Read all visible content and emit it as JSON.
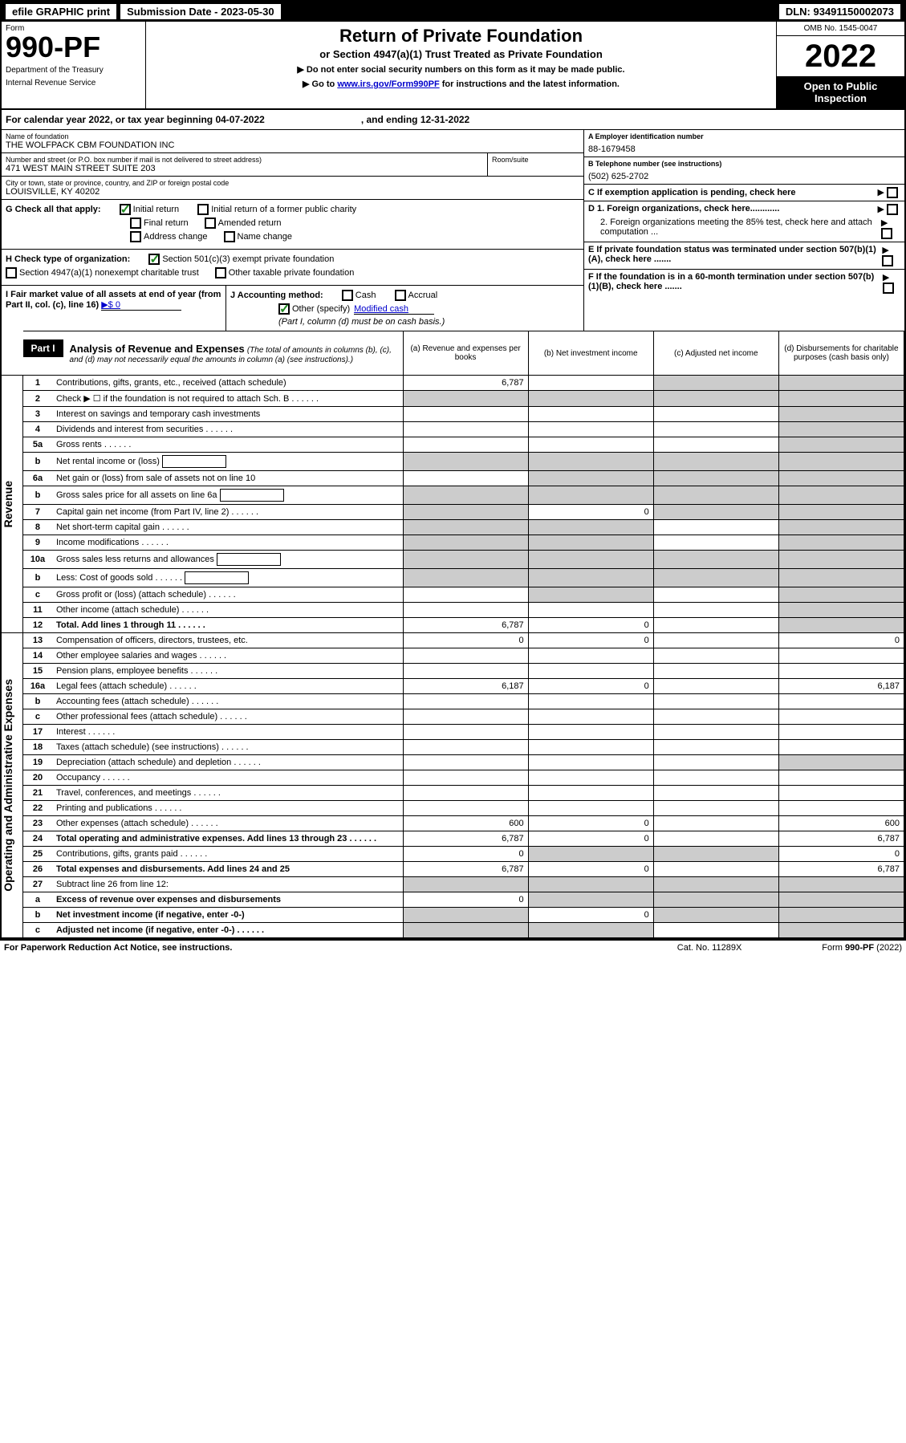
{
  "top_bar": {
    "efile": "efile GRAPHIC print",
    "submission_label": "Submission Date - 2023-05-30",
    "dln": "DLN: 93491150002073"
  },
  "header": {
    "form_label": "Form",
    "form_number": "990-PF",
    "dept1": "Department of the Treasury",
    "dept2": "Internal Revenue Service",
    "title": "Return of Private Foundation",
    "subtitle": "or Section 4947(a)(1) Trust Treated as Private Foundation",
    "instr1": "▶ Do not enter social security numbers on this form as it may be made public.",
    "instr2_pre": "▶ Go to ",
    "instr2_link": "www.irs.gov/Form990PF",
    "instr2_post": " for instructions and the latest information.",
    "omb": "OMB No. 1545-0047",
    "year": "2022",
    "open_public": "Open to Public Inspection"
  },
  "calendar": {
    "text1": "For calendar year 2022, or tax year beginning 04-07-2022",
    "text2": ", and ending 12-31-2022"
  },
  "foundation": {
    "name_label": "Name of foundation",
    "name": "THE WOLFPACK CBM FOUNDATION INC",
    "address_label": "Number and street (or P.O. box number if mail is not delivered to street address)",
    "address": "471 WEST MAIN STREET SUITE 203",
    "room_label": "Room/suite",
    "city_label": "City or town, state or province, country, and ZIP or foreign postal code",
    "city": "LOUISVILLE, KY  40202",
    "ein_label": "A Employer identification number",
    "ein": "88-1679458",
    "phone_label": "B Telephone number (see instructions)",
    "phone": "(502) 625-2702",
    "c_label": "C If exemption application is pending, check here",
    "d1_label": "D 1. Foreign organizations, check here............",
    "d2_label": "2. Foreign organizations meeting the 85% test, check here and attach computation ...",
    "e_label": "E If private foundation status was terminated under section 507(b)(1)(A), check here .......",
    "f_label": "F If the foundation is in a 60-month termination under section 507(b)(1)(B), check here ......."
  },
  "section_g": {
    "label": "G Check all that apply:",
    "initial": "Initial return",
    "initial_former": "Initial return of a former public charity",
    "final": "Final return",
    "amended": "Amended return",
    "address_change": "Address change",
    "name_change": "Name change"
  },
  "section_h": {
    "label": "H Check type of organization:",
    "opt1": "Section 501(c)(3) exempt private foundation",
    "opt2": "Section 4947(a)(1) nonexempt charitable trust",
    "opt3": "Other taxable private foundation"
  },
  "section_i": {
    "label": "I Fair market value of all assets at end of year (from Part II, col. (c), line 16)",
    "value": "▶$  0"
  },
  "section_j": {
    "label": "J Accounting method:",
    "cash": "Cash",
    "accrual": "Accrual",
    "other_pre": "Other (specify)",
    "other_val": "Modified cash",
    "note": "(Part I, column (d) must be on cash basis.)"
  },
  "part1": {
    "label": "Part I",
    "title": "Analysis of Revenue and Expenses",
    "note": "(The total of amounts in columns (b), (c), and (d) may not necessarily equal the amounts in column (a) (see instructions).)",
    "col_a": "(a)  Revenue and expenses per books",
    "col_b": "(b)  Net investment income",
    "col_c": "(c)  Adjusted net income",
    "col_d": "(d)  Disbursements for charitable purposes (cash basis only)"
  },
  "vert_revenue": "Revenue",
  "vert_expenses": "Operating and Administrative Expenses",
  "rows": [
    {
      "num": "1",
      "desc": "Contributions, gifts, grants, etc., received (attach schedule)",
      "a": "6,787",
      "b": "",
      "c": "",
      "d": "",
      "shade_c": true,
      "shade_d": true
    },
    {
      "num": "2",
      "desc": "Check ▶ ☐ if the foundation is not required to attach Sch. B",
      "dots": true,
      "shade_a": true,
      "shade_b": true,
      "shade_c": true,
      "shade_d": true
    },
    {
      "num": "3",
      "desc": "Interest on savings and temporary cash investments",
      "a": "",
      "b": "",
      "c": "",
      "d": "",
      "shade_d": true
    },
    {
      "num": "4",
      "desc": "Dividends and interest from securities",
      "dots": true,
      "a": "",
      "b": "",
      "c": "",
      "d": "",
      "shade_d": true
    },
    {
      "num": "5a",
      "desc": "Gross rents",
      "dots": true,
      "a": "",
      "b": "",
      "c": "",
      "d": "",
      "shade_d": true
    },
    {
      "num": "b",
      "desc": "Net rental income or (loss)",
      "inline_box": true,
      "shade_a": true,
      "shade_b": true,
      "shade_c": true,
      "shade_d": true
    },
    {
      "num": "6a",
      "desc": "Net gain or (loss) from sale of assets not on line 10",
      "a": "",
      "shade_b": true,
      "shade_c": true,
      "shade_d": true
    },
    {
      "num": "b",
      "desc": "Gross sales price for all assets on line 6a",
      "inline_box": true,
      "shade_a": true,
      "shade_b": true,
      "shade_c": true,
      "shade_d": true
    },
    {
      "num": "7",
      "desc": "Capital gain net income (from Part IV, line 2)",
      "dots": true,
      "shade_a": true,
      "b": "0",
      "shade_c": true,
      "shade_d": true
    },
    {
      "num": "8",
      "desc": "Net short-term capital gain",
      "dots": true,
      "shade_a": true,
      "shade_b": true,
      "c": "",
      "shade_d": true
    },
    {
      "num": "9",
      "desc": "Income modifications",
      "dots": true,
      "shade_a": true,
      "shade_b": true,
      "c": "",
      "shade_d": true
    },
    {
      "num": "10a",
      "desc": "Gross sales less returns and allowances",
      "inline_box": true,
      "shade_a": true,
      "shade_b": true,
      "shade_c": true,
      "shade_d": true
    },
    {
      "num": "b",
      "desc": "Less: Cost of goods sold",
      "dots": true,
      "inline_box": true,
      "shade_a": true,
      "shade_b": true,
      "shade_c": true,
      "shade_d": true
    },
    {
      "num": "c",
      "desc": "Gross profit or (loss) (attach schedule)",
      "dots": true,
      "a": "",
      "shade_b": true,
      "c": "",
      "shade_d": true
    },
    {
      "num": "11",
      "desc": "Other income (attach schedule)",
      "dots": true,
      "a": "",
      "b": "",
      "c": "",
      "shade_d": true
    },
    {
      "num": "12",
      "desc": "Total. Add lines 1 through 11",
      "dots": true,
      "bold": true,
      "a": "6,787",
      "b": "0",
      "c": "",
      "shade_d": true
    },
    {
      "num": "13",
      "desc": "Compensation of officers, directors, trustees, etc.",
      "a": "0",
      "b": "0",
      "c": "",
      "d": "0"
    },
    {
      "num": "14",
      "desc": "Other employee salaries and wages",
      "dots": true,
      "a": "",
      "b": "",
      "c": "",
      "d": ""
    },
    {
      "num": "15",
      "desc": "Pension plans, employee benefits",
      "dots": true,
      "a": "",
      "b": "",
      "c": "",
      "d": ""
    },
    {
      "num": "16a",
      "desc": "Legal fees (attach schedule)",
      "dots": true,
      "a": "6,187",
      "b": "0",
      "c": "",
      "d": "6,187"
    },
    {
      "num": "b",
      "desc": "Accounting fees (attach schedule)",
      "dots": true,
      "a": "",
      "b": "",
      "c": "",
      "d": ""
    },
    {
      "num": "c",
      "desc": "Other professional fees (attach schedule)",
      "dots": true,
      "a": "",
      "b": "",
      "c": "",
      "d": ""
    },
    {
      "num": "17",
      "desc": "Interest",
      "dots": true,
      "a": "",
      "b": "",
      "c": "",
      "d": ""
    },
    {
      "num": "18",
      "desc": "Taxes (attach schedule) (see instructions)",
      "dots": true,
      "a": "",
      "b": "",
      "c": "",
      "d": ""
    },
    {
      "num": "19",
      "desc": "Depreciation (attach schedule) and depletion",
      "dots": true,
      "a": "",
      "b": "",
      "c": "",
      "shade_d": true
    },
    {
      "num": "20",
      "desc": "Occupancy",
      "dots": true,
      "a": "",
      "b": "",
      "c": "",
      "d": ""
    },
    {
      "num": "21",
      "desc": "Travel, conferences, and meetings",
      "dots": true,
      "a": "",
      "b": "",
      "c": "",
      "d": ""
    },
    {
      "num": "22",
      "desc": "Printing and publications",
      "dots": true,
      "a": "",
      "b": "",
      "c": "",
      "d": ""
    },
    {
      "num": "23",
      "desc": "Other expenses (attach schedule)",
      "dots": true,
      "a": "600",
      "b": "0",
      "c": "",
      "d": "600"
    },
    {
      "num": "24",
      "desc": "Total operating and administrative expenses. Add lines 13 through 23",
      "dots": true,
      "bold": true,
      "a": "6,787",
      "b": "0",
      "c": "",
      "d": "6,787"
    },
    {
      "num": "25",
      "desc": "Contributions, gifts, grants paid",
      "dots": true,
      "a": "0",
      "shade_b": true,
      "shade_c": true,
      "d": "0"
    },
    {
      "num": "26",
      "desc": "Total expenses and disbursements. Add lines 24 and 25",
      "bold": true,
      "a": "6,787",
      "b": "0",
      "c": "",
      "d": "6,787"
    },
    {
      "num": "27",
      "desc": "Subtract line 26 from line 12:",
      "shade_a": true,
      "shade_b": true,
      "shade_c": true,
      "shade_d": true
    },
    {
      "num": "a",
      "desc": "Excess of revenue over expenses and disbursements",
      "bold": true,
      "a": "0",
      "shade_b": true,
      "shade_c": true,
      "shade_d": true
    },
    {
      "num": "b",
      "desc": "Net investment income (if negative, enter -0-)",
      "bold": true,
      "shade_a": true,
      "b": "0",
      "shade_c": true,
      "shade_d": true
    },
    {
      "num": "c",
      "desc": "Adjusted net income (if negative, enter -0-)",
      "dots": true,
      "bold": true,
      "shade_a": true,
      "shade_b": true,
      "c": "",
      "shade_d": true
    }
  ],
  "footer": {
    "left": "For Paperwork Reduction Act Notice, see instructions.",
    "center": "Cat. No. 11289X",
    "right": "Form 990-PF (2022)"
  }
}
